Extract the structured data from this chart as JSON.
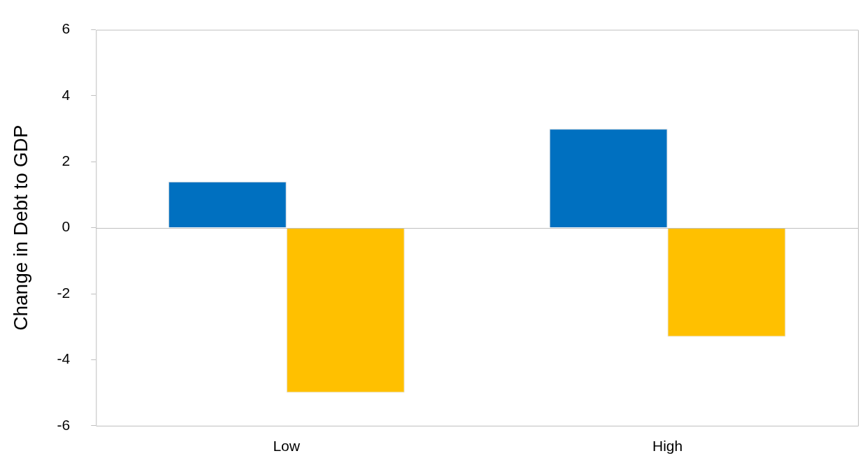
{
  "chart_data": {
    "type": "bar",
    "ylabel": "Change in Debt to GDP",
    "categories": [
      "Low",
      "High"
    ],
    "series": [
      {
        "color": "#0070c0",
        "values": [
          1.4,
          3.0
        ]
      },
      {
        "color": "#ffc000",
        "values": [
          -5.0,
          -3.3
        ]
      }
    ],
    "ylim": [
      -6,
      6
    ],
    "yticks": [
      -6,
      -4,
      -2,
      0,
      2,
      4,
      6
    ],
    "legend": false
  }
}
